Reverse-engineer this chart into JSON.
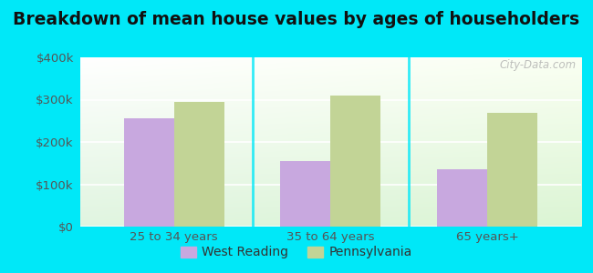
{
  "title": "Breakdown of mean house values by ages of householders",
  "categories": [
    "25 to 34 years",
    "35 to 64 years",
    "65 years+"
  ],
  "west_reading": [
    255000,
    155000,
    135000
  ],
  "pennsylvania": [
    295000,
    310000,
    268000
  ],
  "west_reading_color": "#c8a8df",
  "pennsylvania_color": "#c2d496",
  "background_outer": "#00e8f8",
  "ylim": [
    0,
    400000
  ],
  "yticks": [
    0,
    100000,
    200000,
    300000,
    400000
  ],
  "ytick_labels": [
    "$0",
    "$100k",
    "$200k",
    "$300k",
    "$400k"
  ],
  "legend_labels": [
    "West Reading",
    "Pennsylvania"
  ],
  "bar_width": 0.32,
  "title_fontsize": 13.5,
  "tick_fontsize": 9.5,
  "legend_fontsize": 10,
  "watermark": "City-Data.com"
}
